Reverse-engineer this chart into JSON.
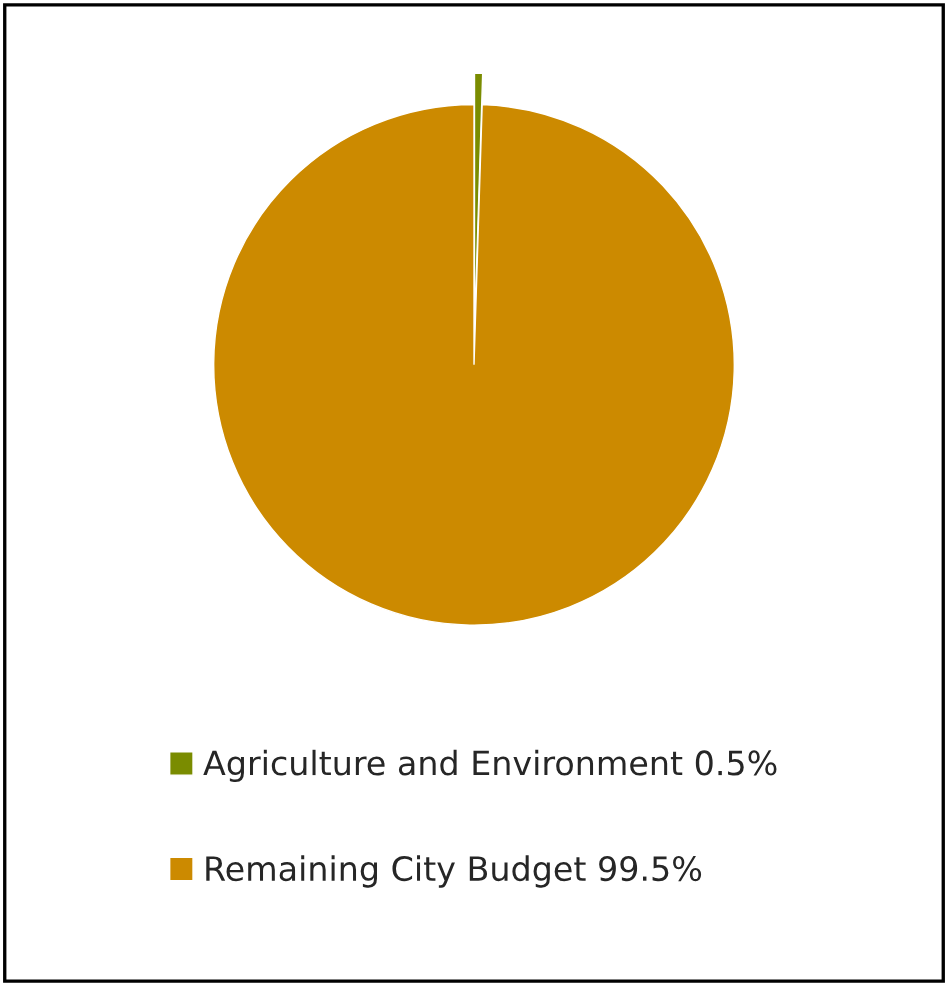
{
  "chart_data": {
    "type": "pie",
    "categories": [
      "Agriculture and Environment",
      "Remaining City Budget"
    ],
    "values": [
      0.5,
      99.5
    ],
    "value_labels": [
      "0.5%",
      "99.5%"
    ],
    "colors": [
      "#7a8c00",
      "#cc8a00"
    ],
    "legend": "bottom"
  }
}
